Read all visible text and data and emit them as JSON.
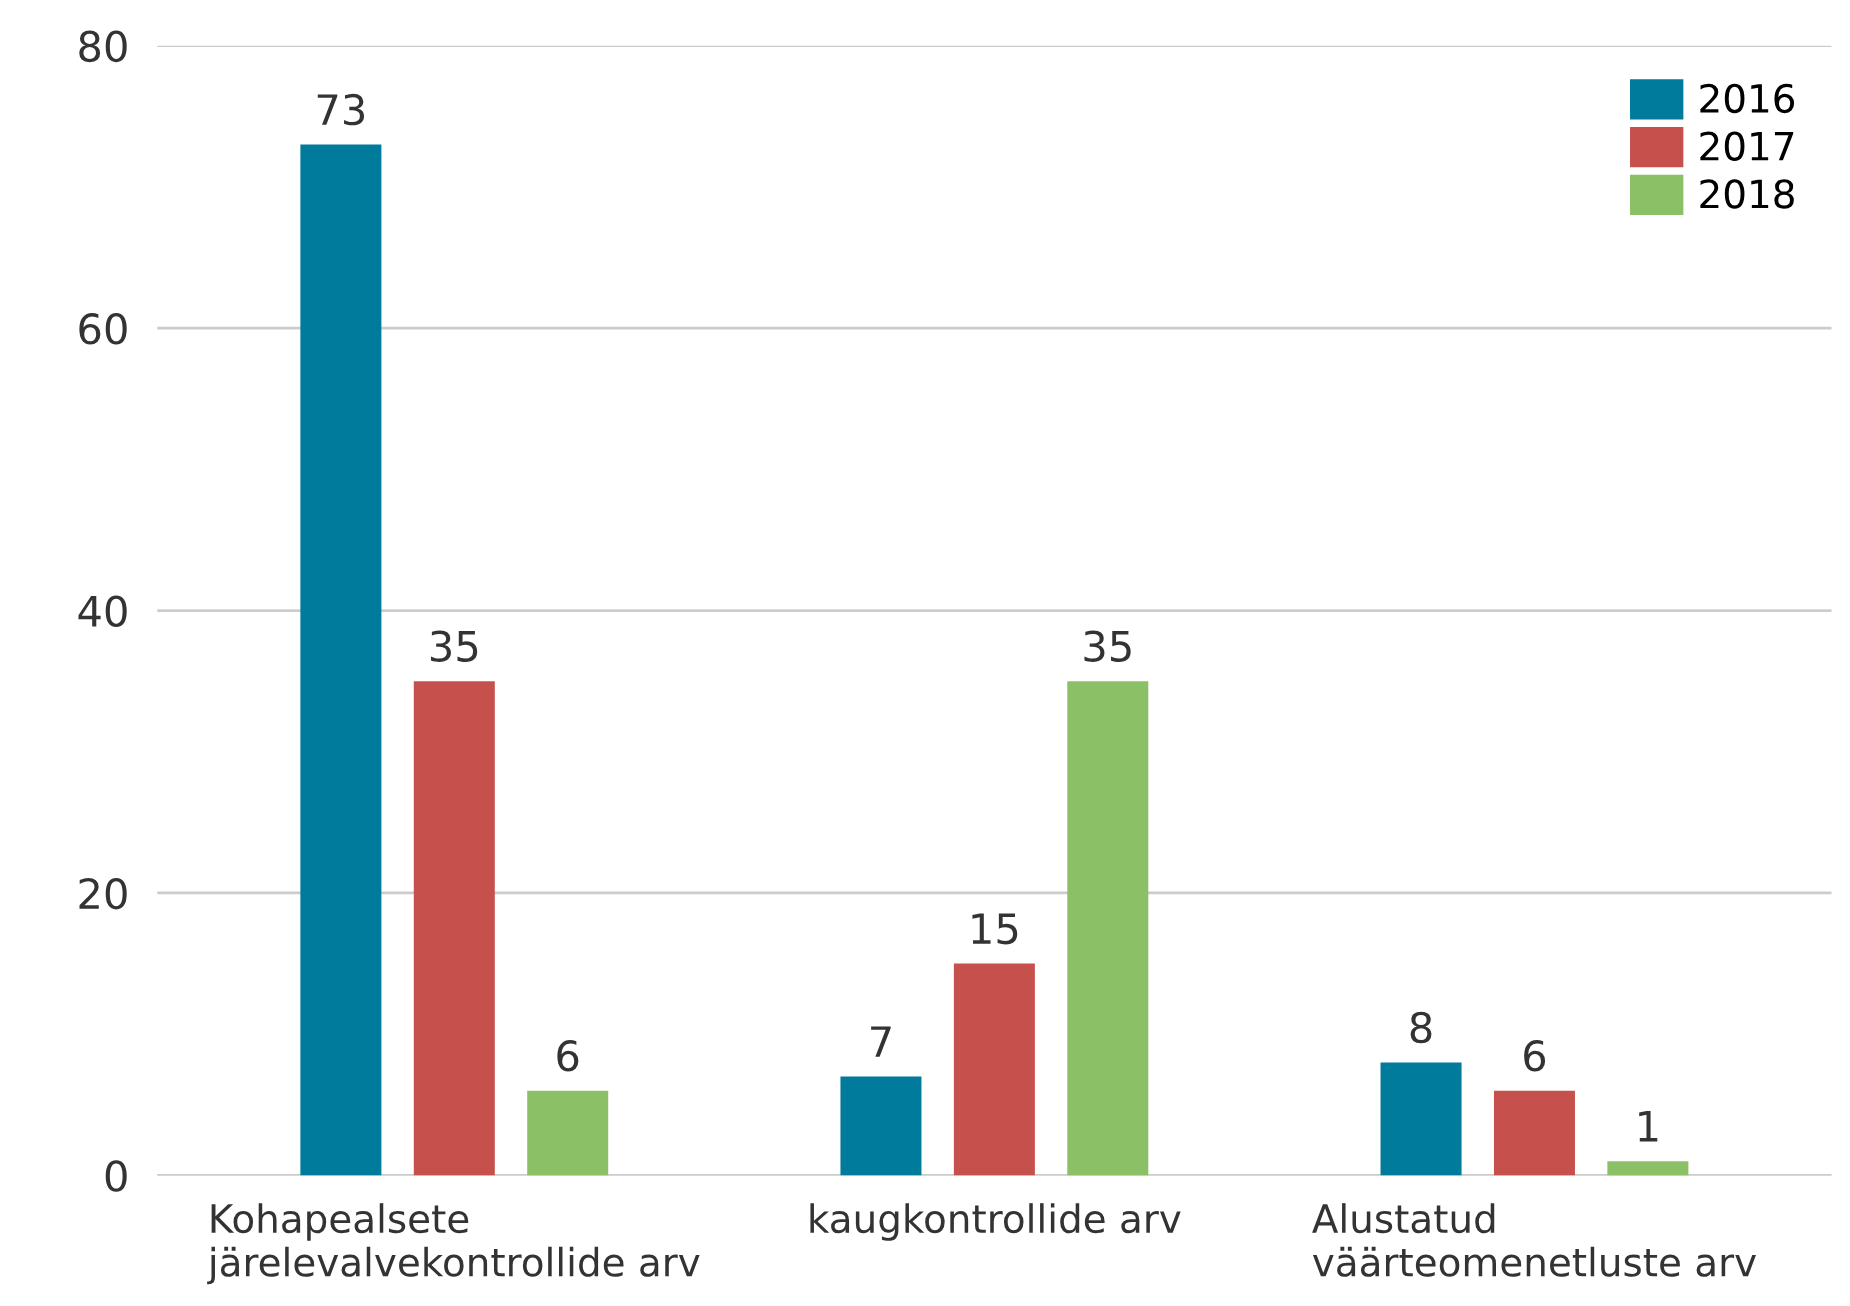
{
  "chart_data": {
    "type": "bar",
    "categories": [
      "Kohapealsete\njärelevalvekontrollide arv",
      "kaugkontrollide arv",
      "Alustatud\nväärteomenetluste arv"
    ],
    "series": [
      {
        "name": "2016",
        "color": "#007b9c",
        "values": [
          73,
          7,
          8
        ]
      },
      {
        "name": "2017",
        "color": "#c5504c",
        "values": [
          35,
          15,
          6
        ]
      },
      {
        "name": "2018",
        "color": "#8bc066",
        "values": [
          6,
          35,
          1
        ]
      }
    ],
    "ylim": [
      0,
      80
    ],
    "yticks": [
      0,
      20,
      40,
      60,
      80
    ],
    "grid": "y",
    "legend": "top right",
    "data_labels": true
  }
}
